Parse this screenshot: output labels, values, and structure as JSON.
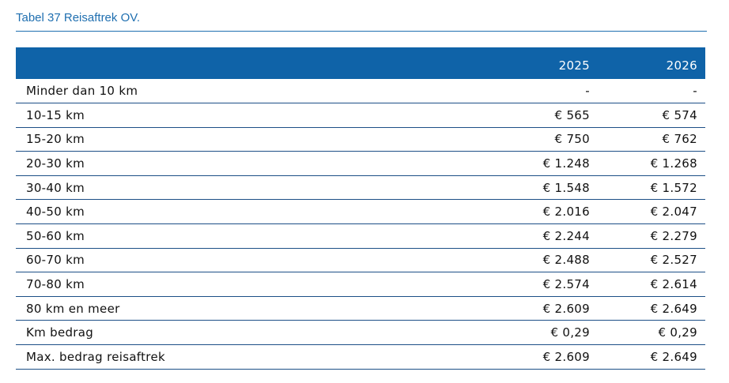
{
  "title": "Tabel 37 Reisaftrek OV.",
  "table": {
    "header": [
      "2025",
      "2026"
    ],
    "rows": [
      [
        "Minder dan 10 km",
        "-",
        "-"
      ],
      [
        "10-15 km",
        "€ 565",
        "€ 574"
      ],
      [
        "15-20 km",
        "€ 750",
        "€ 762"
      ],
      [
        "20-30 km",
        "€ 1.248",
        "€ 1.268"
      ],
      [
        "30-40 km",
        "€ 1.548",
        "€ 1.572"
      ],
      [
        "40-50 km",
        "€ 2.016",
        "€ 2.047"
      ],
      [
        "50-60 km",
        "€ 2.244",
        "€ 2.279"
      ],
      [
        "60-70 km",
        "€ 2.488",
        "€ 2.527"
      ],
      [
        "70-80 km",
        "€ 2.574",
        "€ 2.614"
      ],
      [
        "80 km en meer",
        "€ 2.609",
        "€ 2.649"
      ],
      [
        "Km bedrag",
        "€ 0,29",
        "€ 0,29"
      ],
      [
        "Max. bedrag reisaftrek",
        "€ 2.609",
        "€ 2.649"
      ]
    ]
  }
}
